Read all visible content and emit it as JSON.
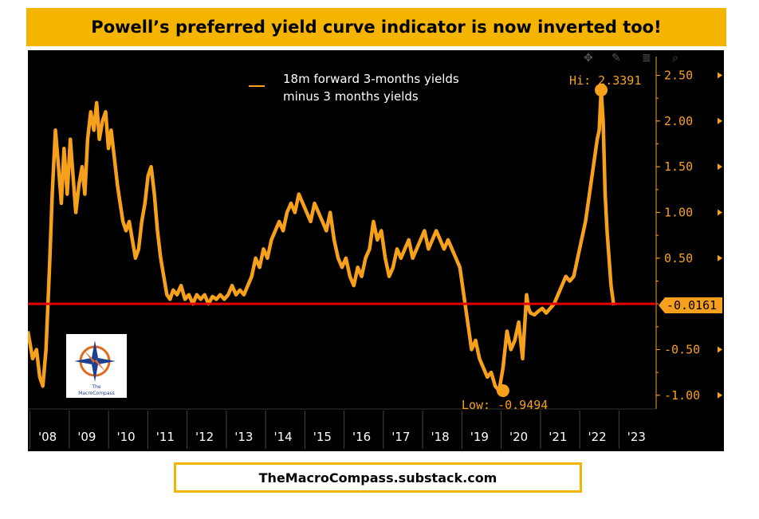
{
  "title": "Powell’s preferred yield curve indicator is now inverted too!",
  "footer": "TheMacroCompass.substack.com",
  "logo": {
    "text": "The MacroCompass"
  },
  "colors": {
    "line": "#f7a01c",
    "zero_line": "#e30000",
    "banner": "#f4b400",
    "axis_text": "#f7a01c",
    "bg": "#000000"
  },
  "chart_data": {
    "type": "line",
    "title": "Powell’s preferred yield curve indicator is now inverted too!",
    "legend": "18m forward 3-months yields minus 3 months yields",
    "legend_lines": [
      "18m forward 3-months yields",
      "minus 3 months yields"
    ],
    "xlabel": "",
    "ylabel": "",
    "ylim": [
      -1.15,
      2.6
    ],
    "xlim": [
      2007.5,
      2023.5
    ],
    "yticks": [
      2.5,
      2.0,
      1.5,
      1.0,
      0.5,
      -0.5,
      -1.0
    ],
    "ytick_labels": [
      "2.50",
      "2.00",
      "1.50",
      "1.00",
      "0.50",
      "-0.50",
      "-1.00"
    ],
    "xticks": [
      2008,
      2009,
      2010,
      2011,
      2012,
      2013,
      2014,
      2015,
      2016,
      2017,
      2018,
      2019,
      2020,
      2021,
      2022,
      2023
    ],
    "xtick_labels": [
      "'08",
      "'09",
      "'10",
      "'11",
      "'12",
      "'13",
      "'14",
      "'15",
      "'16",
      "'17",
      "'18",
      "'19",
      "'20",
      "'21",
      "'22",
      "'23"
    ],
    "reference_line": {
      "y": 0,
      "color": "#e30000"
    },
    "last_value": -0.0161,
    "last_value_label": "-0.0161",
    "high": {
      "x": 2022.1,
      "y": 2.3391,
      "label": "Hi: 2.3391"
    },
    "low": {
      "x": 2019.6,
      "y": -0.9494,
      "label": "Low: -0.9494"
    },
    "series": [
      {
        "name": "18m forward 3-months yields minus 3 months yields",
        "x": [
          2007.5,
          2007.62,
          2007.72,
          2007.8,
          2007.88,
          2007.96,
          2008.05,
          2008.12,
          2008.2,
          2008.28,
          2008.35,
          2008.42,
          2008.5,
          2008.58,
          2008.65,
          2008.72,
          2008.8,
          2008.88,
          2008.95,
          2009.02,
          2009.1,
          2009.18,
          2009.25,
          2009.32,
          2009.4,
          2009.48,
          2009.55,
          2009.62,
          2009.7,
          2009.78,
          2009.85,
          2009.92,
          2010.0,
          2010.08,
          2010.16,
          2010.24,
          2010.32,
          2010.4,
          2010.48,
          2010.56,
          2010.64,
          2010.72,
          2010.8,
          2010.88,
          2010.96,
          2011.04,
          2011.12,
          2011.2,
          2011.3,
          2011.4,
          2011.5,
          2011.6,
          2011.7,
          2011.8,
          2011.9,
          2012.0,
          2012.1,
          2012.2,
          2012.3,
          2012.4,
          2012.5,
          2012.6,
          2012.7,
          2012.8,
          2012.9,
          2013.0,
          2013.1,
          2013.2,
          2013.3,
          2013.4,
          2013.5,
          2013.6,
          2013.7,
          2013.8,
          2013.9,
          2014.0,
          2014.1,
          2014.2,
          2014.3,
          2014.4,
          2014.5,
          2014.6,
          2014.7,
          2014.8,
          2014.9,
          2015.0,
          2015.1,
          2015.2,
          2015.3,
          2015.4,
          2015.5,
          2015.6,
          2015.7,
          2015.8,
          2015.9,
          2016.0,
          2016.1,
          2016.2,
          2016.3,
          2016.4,
          2016.5,
          2016.6,
          2016.7,
          2016.8,
          2016.9,
          2017.0,
          2017.1,
          2017.2,
          2017.3,
          2017.4,
          2017.5,
          2017.6,
          2017.7,
          2017.8,
          2017.9,
          2018.0,
          2018.1,
          2018.2,
          2018.3,
          2018.4,
          2018.5,
          2018.6,
          2018.7,
          2018.8,
          2018.9,
          2019.0,
          2019.1,
          2019.2,
          2019.3,
          2019.4,
          2019.5,
          2019.6,
          2019.7,
          2019.8,
          2019.9,
          2020.0,
          2020.1,
          2020.2,
          2020.25,
          2020.3,
          2020.4,
          2020.5,
          2020.6,
          2020.7,
          2020.8,
          2020.9,
          2021.0,
          2021.1,
          2021.2,
          2021.3,
          2021.4,
          2021.5,
          2021.6,
          2021.7,
          2021.8,
          2021.9,
          2022.0,
          2022.05,
          2022.1,
          2022.15,
          2022.2,
          2022.25,
          2022.3,
          2022.35,
          2022.42
        ],
        "y": [
          -0.3,
          -0.6,
          -0.5,
          -0.8,
          -0.9,
          -0.5,
          0.4,
          1.2,
          1.9,
          1.5,
          1.1,
          1.7,
          1.2,
          1.8,
          1.4,
          1.0,
          1.3,
          1.5,
          1.2,
          1.8,
          2.1,
          1.9,
          2.2,
          1.8,
          2.0,
          2.1,
          1.7,
          1.9,
          1.6,
          1.3,
          1.1,
          0.9,
          0.8,
          0.9,
          0.7,
          0.5,
          0.6,
          0.9,
          1.1,
          1.4,
          1.5,
          1.2,
          0.8,
          0.5,
          0.3,
          0.1,
          0.05,
          0.15,
          0.1,
          0.2,
          0.05,
          0.1,
          0.0,
          0.1,
          0.05,
          0.1,
          0.0,
          0.08,
          0.05,
          0.1,
          0.05,
          0.1,
          0.2,
          0.1,
          0.15,
          0.1,
          0.2,
          0.3,
          0.5,
          0.4,
          0.6,
          0.5,
          0.7,
          0.8,
          0.9,
          0.8,
          1.0,
          1.1,
          1.0,
          1.2,
          1.1,
          1.0,
          0.9,
          1.1,
          1.0,
          0.9,
          0.8,
          1.0,
          0.7,
          0.5,
          0.4,
          0.5,
          0.3,
          0.2,
          0.4,
          0.3,
          0.5,
          0.6,
          0.9,
          0.7,
          0.8,
          0.5,
          0.3,
          0.4,
          0.6,
          0.5,
          0.6,
          0.7,
          0.5,
          0.6,
          0.7,
          0.8,
          0.6,
          0.7,
          0.8,
          0.7,
          0.6,
          0.7,
          0.6,
          0.5,
          0.4,
          0.1,
          -0.2,
          -0.5,
          -0.4,
          -0.6,
          -0.7,
          -0.8,
          -0.75,
          -0.9,
          -0.95,
          -0.7,
          -0.3,
          -0.5,
          -0.4,
          -0.2,
          -0.6,
          0.1,
          -0.05,
          -0.1,
          -0.12,
          -0.08,
          -0.05,
          -0.1,
          -0.05,
          0.0,
          0.1,
          0.2,
          0.3,
          0.25,
          0.3,
          0.5,
          0.7,
          0.9,
          1.2,
          1.5,
          1.8,
          1.9,
          2.3391,
          2.0,
          1.2,
          0.8,
          0.5,
          0.2,
          -0.0161
        ]
      }
    ]
  }
}
